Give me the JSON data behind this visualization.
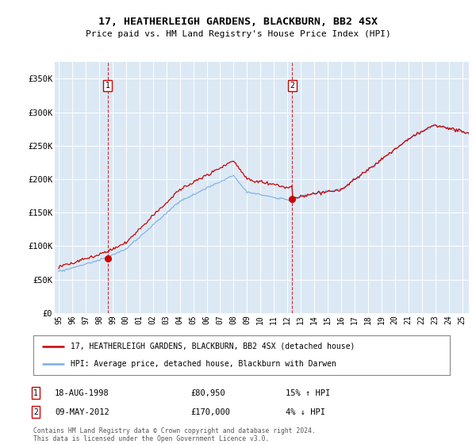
{
  "title1": "17, HEATHERLEIGH GARDENS, BLACKBURN, BB2 4SX",
  "title2": "Price paid vs. HM Land Registry's House Price Index (HPI)",
  "legend_red": "17, HEATHERLEIGH GARDENS, BLACKBURN, BB2 4SX (detached house)",
  "legend_blue": "HPI: Average price, detached house, Blackburn with Darwen",
  "sale1_date": "18-AUG-1998",
  "sale1_price": 80950,
  "sale1_hpi": "15% ↑ HPI",
  "sale2_date": "09-MAY-2012",
  "sale2_price": 170000,
  "sale2_hpi": "4% ↓ HPI",
  "footnote": "Contains HM Land Registry data © Crown copyright and database right 2024.\nThis data is licensed under the Open Government Licence v3.0.",
  "plot_bg": "#dce9f5",
  "ylim": [
    0,
    375000
  ],
  "yticks": [
    0,
    50000,
    100000,
    150000,
    200000,
    250000,
    300000,
    350000
  ],
  "ytick_labels": [
    "£0",
    "£50K",
    "£100K",
    "£150K",
    "£200K",
    "£250K",
    "£300K",
    "£350K"
  ],
  "red_color": "#cc0000",
  "blue_color": "#7aafe0",
  "sale1_x": 1998.63,
  "sale2_x": 2012.36,
  "xlim_min": 1994.7,
  "xlim_max": 2025.5,
  "xtick_years": [
    1995,
    1996,
    1997,
    1998,
    1999,
    2000,
    2001,
    2002,
    2003,
    2004,
    2005,
    2006,
    2007,
    2008,
    2009,
    2010,
    2011,
    2012,
    2013,
    2014,
    2015,
    2016,
    2017,
    2018,
    2019,
    2020,
    2021,
    2022,
    2023,
    2024,
    2025
  ]
}
